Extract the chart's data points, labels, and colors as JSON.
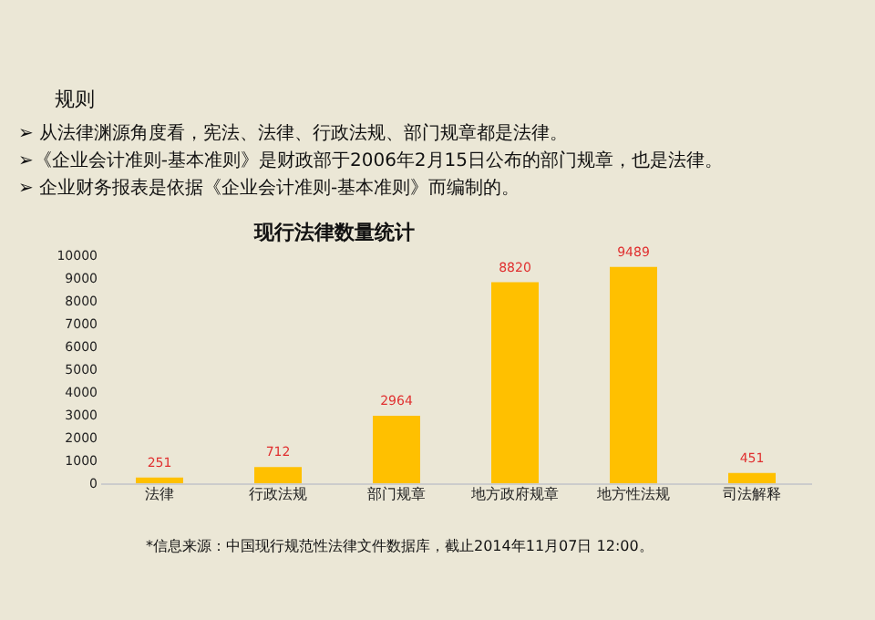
{
  "chart_data": {
    "type": "bar",
    "title": "现行法律数量统计",
    "annotations": [
      "规则",
      "➢ 从法律渊源角度看，宪法、法律、行政法规、部门规章都是法律。",
      "➢《企业会计准则-基本准则》是财政部于2006年2月15日公布的部门规章，也是法律。",
      "➢ 企业财务报表是依据《企业会计准则-基本准则》而编制的。",
      "*信息来源：中国现行规范性法律文件数据库，截止2014年11月07日 12:00。"
    ],
    "categories": [
      "法律",
      "行政法规",
      "部门规章",
      "地方政府规章",
      "地方性法规",
      "司法解释"
    ],
    "values": [
      251,
      712,
      2964,
      8820,
      9489,
      451
    ],
    "color": "#ffc000",
    "ylim": [
      0,
      10000
    ],
    "yticks": [
      0,
      1000,
      2000,
      3000,
      4000,
      5000,
      6000,
      7000,
      8000,
      9000,
      10000
    ],
    "data_labels": true,
    "grid": false
  }
}
